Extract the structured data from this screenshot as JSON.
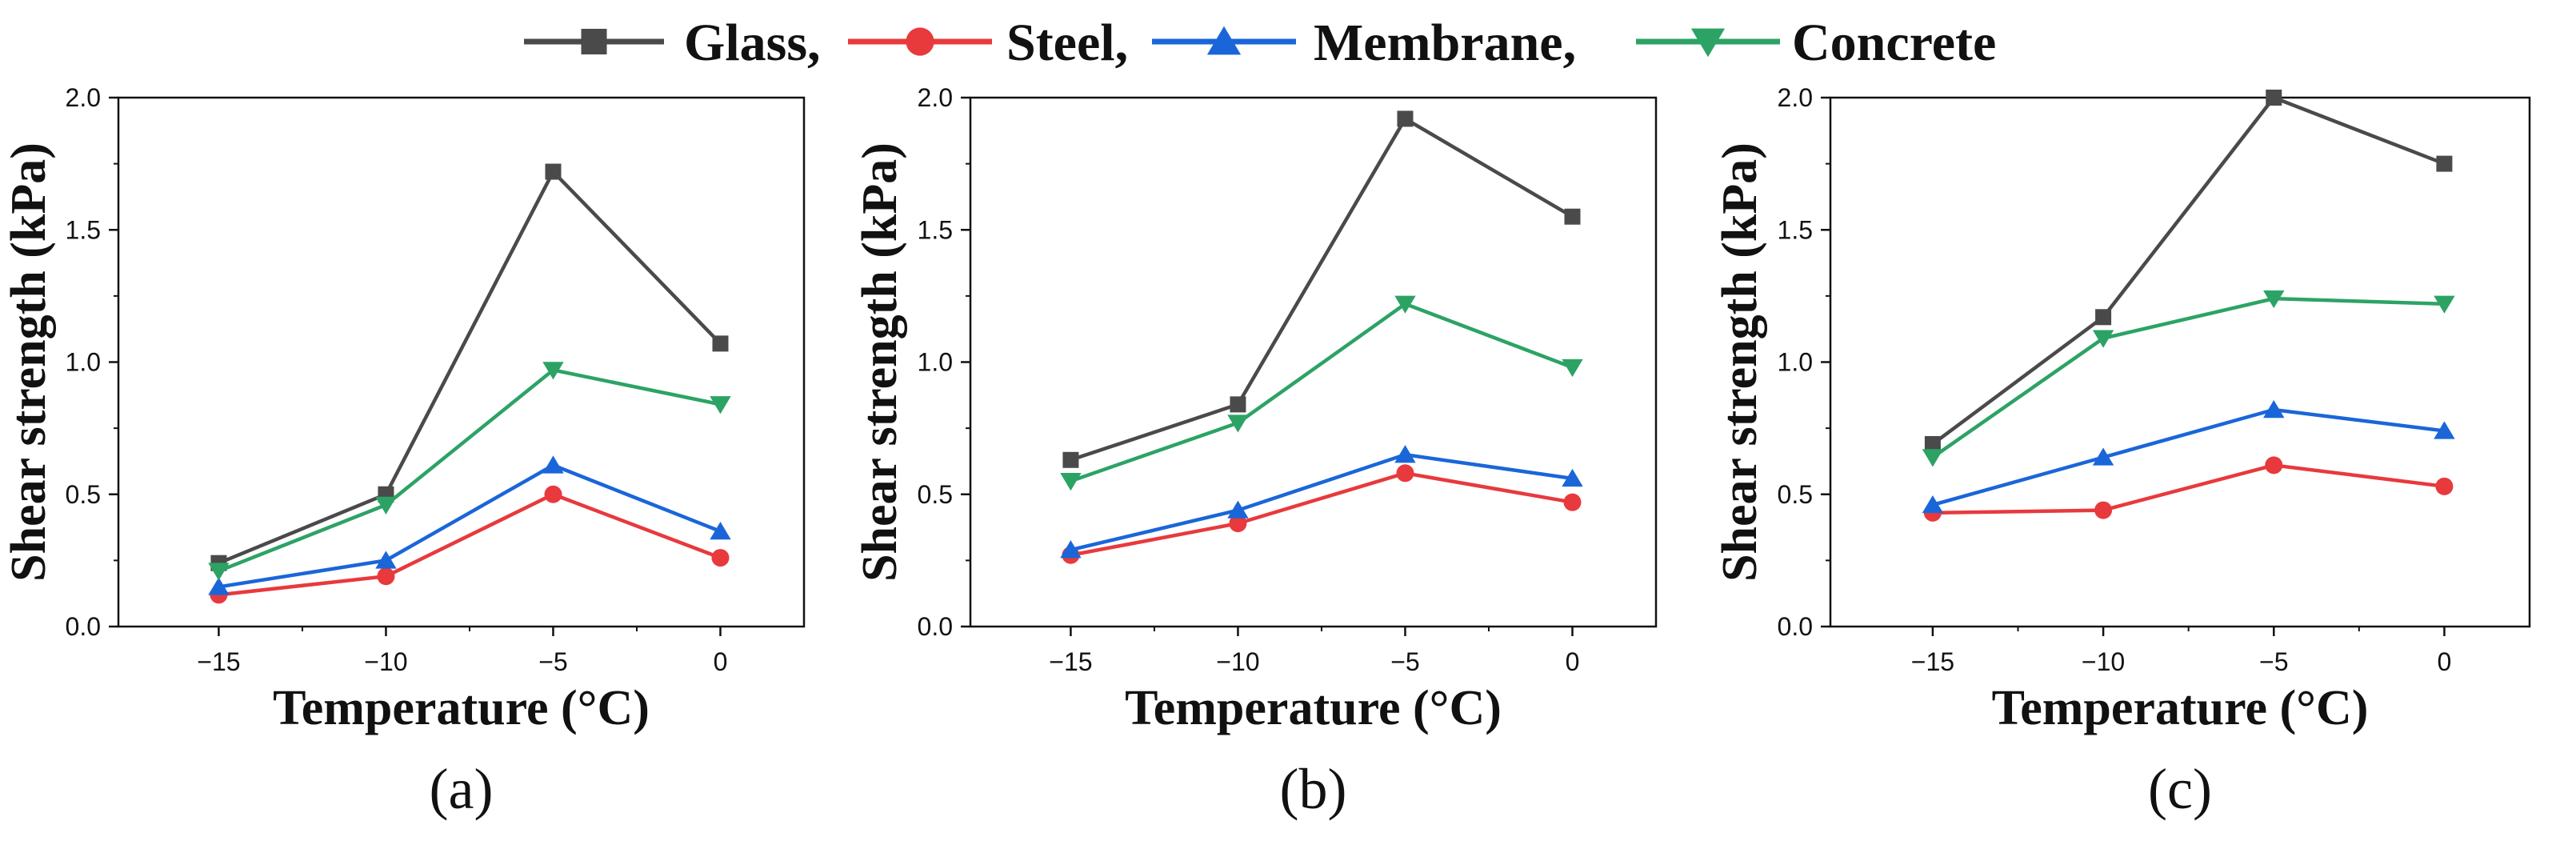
{
  "legend": {
    "entries": [
      {
        "name": "Glass",
        "label": "Glass,",
        "color": "#4a4a4a",
        "marker": "square"
      },
      {
        "name": "Steel",
        "label": "Steel,",
        "color": "#e8393d",
        "marker": "circle"
      },
      {
        "name": "Membrane",
        "label": "Membrane,",
        "color": "#1a66d9",
        "marker": "triangle-up"
      },
      {
        "name": "Concrete",
        "label": "Concrete",
        "color": "#2ca365",
        "marker": "triangle-down"
      }
    ]
  },
  "chart_data": [
    {
      "type": "line",
      "panel_label": "(a)",
      "xlabel": "Temperature (°C)",
      "ylabel": "Shear strength (kPa)",
      "x": [
        -15,
        -10,
        -5,
        0
      ],
      "xticks": [
        "−15",
        "−10",
        "−5",
        "0"
      ],
      "yticks": [
        "0.0",
        "0.5",
        "1.0",
        "1.5",
        "2.0"
      ],
      "xlim": [
        -18,
        2.5
      ],
      "ylim": [
        0,
        2.0
      ],
      "series": [
        {
          "name": "Glass",
          "values": [
            0.24,
            0.5,
            1.72,
            1.07
          ]
        },
        {
          "name": "Steel",
          "values": [
            0.12,
            0.19,
            0.5,
            0.26
          ]
        },
        {
          "name": "Membrane",
          "values": [
            0.15,
            0.25,
            0.61,
            0.36
          ]
        },
        {
          "name": "Concrete",
          "values": [
            0.21,
            0.46,
            0.97,
            0.84
          ]
        }
      ]
    },
    {
      "type": "line",
      "panel_label": "(b)",
      "xlabel": "Temperature (°C)",
      "ylabel": "Shear strength (kPa)",
      "x": [
        -15,
        -10,
        -5,
        0
      ],
      "xticks": [
        "−15",
        "−10",
        "−5",
        "0"
      ],
      "yticks": [
        "0.0",
        "0.5",
        "1.0",
        "1.5",
        "2.0"
      ],
      "xlim": [
        -18,
        2.5
      ],
      "ylim": [
        0,
        2.0
      ],
      "series": [
        {
          "name": "Glass",
          "values": [
            0.63,
            0.84,
            1.92,
            1.55
          ]
        },
        {
          "name": "Steel",
          "values": [
            0.27,
            0.39,
            0.58,
            0.47
          ]
        },
        {
          "name": "Membrane",
          "values": [
            0.29,
            0.44,
            0.65,
            0.56
          ]
        },
        {
          "name": "Concrete",
          "values": [
            0.55,
            0.77,
            1.22,
            0.98
          ]
        }
      ]
    },
    {
      "type": "line",
      "panel_label": "(c)",
      "xlabel": "Temperature (°C)",
      "ylabel": "Shear strength (kPa)",
      "x": [
        -15,
        -10,
        -5,
        0
      ],
      "xticks": [
        "−15",
        "−10",
        "−5",
        "0"
      ],
      "yticks": [
        "0.0",
        "0.5",
        "1.0",
        "1.5",
        "2.0"
      ],
      "xlim": [
        -18,
        2.5
      ],
      "ylim": [
        0,
        2.0
      ],
      "series": [
        {
          "name": "Glass",
          "values": [
            0.69,
            1.17,
            2.0,
            1.75
          ]
        },
        {
          "name": "Steel",
          "values": [
            0.43,
            0.44,
            0.61,
            0.53
          ]
        },
        {
          "name": "Membrane",
          "values": [
            0.46,
            0.64,
            0.82,
            0.74
          ]
        },
        {
          "name": "Concrete",
          "values": [
            0.64,
            1.09,
            1.24,
            1.22
          ]
        }
      ]
    }
  ]
}
